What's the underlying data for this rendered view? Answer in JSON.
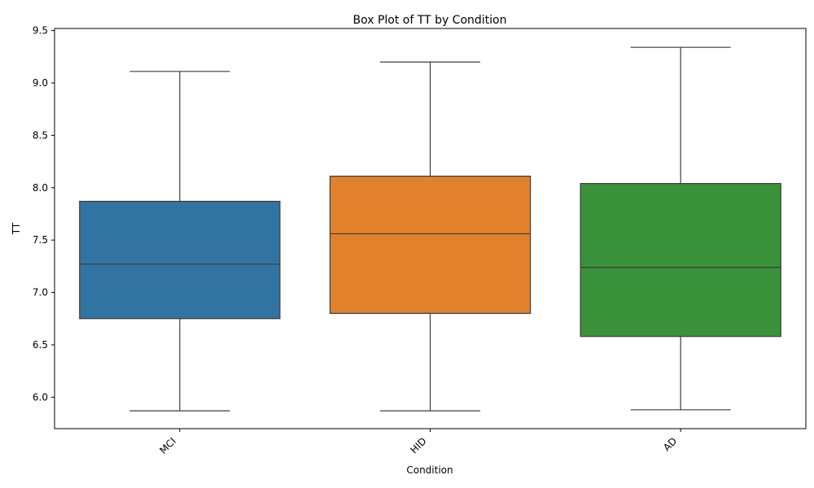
{
  "chart_data": {
    "type": "box",
    "title": "Box Plot of TT by Condition",
    "xlabel": "Condition",
    "ylabel": "TT",
    "ylim": [
      5.7,
      9.52
    ],
    "yticks": [
      "6.0",
      "6.5",
      "7.0",
      "7.5",
      "8.0",
      "8.5",
      "9.0",
      "9.5"
    ],
    "grid": false,
    "legend": "none",
    "categories": [
      "MCI",
      "HID",
      "AD"
    ],
    "colors": [
      "#3274a1",
      "#e1812c",
      "#3a923a"
    ],
    "boxes": [
      {
        "category": "MCI",
        "min": 5.87,
        "q1": 6.75,
        "median": 7.27,
        "q3": 7.87,
        "max": 9.11
      },
      {
        "category": "HID",
        "min": 5.87,
        "q1": 6.8,
        "median": 7.56,
        "q3": 8.11,
        "max": 9.2
      },
      {
        "category": "AD",
        "min": 5.88,
        "q1": 6.58,
        "median": 7.24,
        "q3": 8.04,
        "max": 9.34
      }
    ]
  }
}
